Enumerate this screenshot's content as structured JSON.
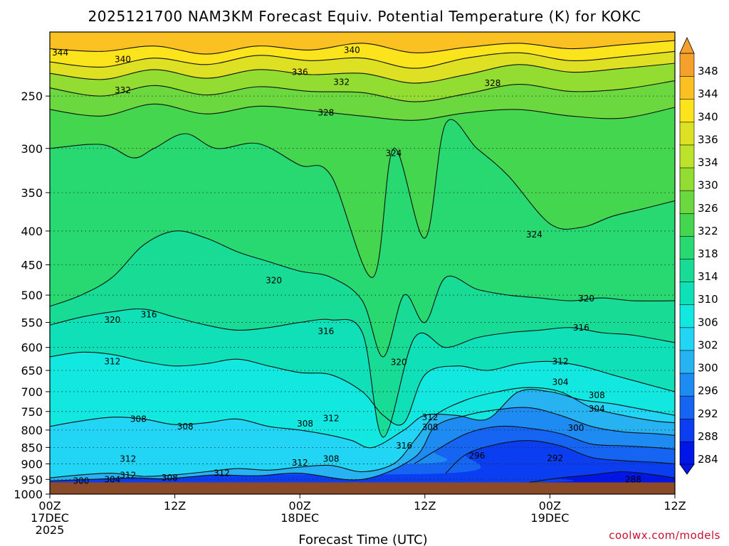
{
  "chart_data": {
    "type": "heatmap",
    "title": "2025121700 NAM3KM Forecast Equiv. Potential Temperature (K) for KOKC",
    "xlabel": "Forecast Time (UTC)",
    "ylabel": "",
    "x_ticks": [
      {
        "lines": [
          "00Z",
          "17DEC",
          "2025"
        ]
      },
      {
        "lines": [
          "12Z"
        ]
      },
      {
        "lines": [
          "00Z",
          "18DEC"
        ]
      },
      {
        "lines": [
          "12Z"
        ]
      },
      {
        "lines": [
          "00Z",
          "19DEC"
        ]
      },
      {
        "lines": [
          "12Z"
        ]
      }
    ],
    "x_range_hours": [
      0,
      60
    ],
    "y_range_hpa": [
      1000,
      200
    ],
    "y_scale": "log",
    "y_ticks": [
      250,
      300,
      350,
      400,
      450,
      500,
      550,
      600,
      650,
      700,
      750,
      800,
      850,
      900,
      950,
      1000
    ],
    "grid": true,
    "colorbar": {
      "levels": [
        284,
        288,
        292,
        296,
        300,
        302,
        306,
        310,
        314,
        318,
        322,
        326,
        330,
        334,
        336,
        340,
        344,
        348
      ],
      "colors": [
        "#0015e8",
        "#0a3ef0",
        "#1565f2",
        "#1e8bf2",
        "#27b3f2",
        "#22d5f5",
        "#12e8e0",
        "#10e0b8",
        "#18dc96",
        "#28d870",
        "#45d650",
        "#6ad83e",
        "#93dc32",
        "#bce22a",
        "#dee024",
        "#fce41c",
        "#fbc022",
        "#f4a02a"
      ],
      "position": "right"
    },
    "isotherms": [
      {
        "value": 344,
        "points": [
          [
            0,
            212
          ],
          [
            5,
            214
          ],
          [
            10,
            210
          ],
          [
            15,
            216
          ],
          [
            20,
            210
          ],
          [
            25,
            213
          ],
          [
            30,
            208
          ],
          [
            35,
            215
          ],
          [
            40,
            211
          ],
          [
            45,
            208
          ],
          [
            50,
            212
          ],
          [
            55,
            209
          ],
          [
            60,
            206
          ]
        ]
      },
      {
        "value": 340,
        "points": [
          [
            0,
            222
          ],
          [
            5,
            226
          ],
          [
            10,
            219
          ],
          [
            15,
            224
          ],
          [
            20,
            217
          ],
          [
            25,
            221
          ],
          [
            30,
            219
          ],
          [
            35,
            227
          ],
          [
            40,
            219
          ],
          [
            45,
            215
          ],
          [
            50,
            221
          ],
          [
            55,
            218
          ],
          [
            60,
            214
          ]
        ]
      },
      {
        "value": 336,
        "points": [
          [
            0,
            231
          ],
          [
            5,
            236
          ],
          [
            10,
            228
          ],
          [
            15,
            235
          ],
          [
            20,
            228
          ],
          [
            25,
            232
          ],
          [
            30,
            231
          ],
          [
            35,
            239
          ],
          [
            40,
            232
          ],
          [
            45,
            224
          ],
          [
            50,
            230
          ],
          [
            55,
            227
          ],
          [
            60,
            223
          ]
        ]
      },
      {
        "value": 332,
        "points": [
          [
            0,
            243
          ],
          [
            5,
            250
          ],
          [
            10,
            241
          ],
          [
            15,
            249
          ],
          [
            20,
            242
          ],
          [
            25,
            246
          ],
          [
            30,
            247
          ],
          [
            35,
            255
          ],
          [
            40,
            248
          ],
          [
            45,
            240
          ],
          [
            50,
            246
          ],
          [
            55,
            244
          ],
          [
            60,
            237
          ]
        ]
      },
      {
        "value": 328,
        "points": [
          [
            0,
            262
          ],
          [
            5,
            268
          ],
          [
            10,
            257
          ],
          [
            15,
            266
          ],
          [
            20,
            259
          ],
          [
            25,
            263
          ],
          [
            30,
            268
          ],
          [
            35,
            272
          ],
          [
            40,
            265
          ],
          [
            45,
            262
          ],
          [
            50,
            268
          ],
          [
            55,
            270
          ],
          [
            60,
            260
          ]
        ]
      },
      {
        "value": 324,
        "points": [
          [
            0,
            300
          ],
          [
            5,
            296
          ],
          [
            8,
            310
          ],
          [
            10,
            300
          ],
          [
            13,
            285
          ],
          [
            16,
            300
          ],
          [
            20,
            295
          ],
          [
            24,
            318
          ],
          [
            27,
            330
          ],
          [
            31,
            470
          ],
          [
            33,
            300
          ],
          [
            36,
            410
          ],
          [
            38,
            275
          ],
          [
            41,
            300
          ],
          [
            44,
            330
          ],
          [
            48,
            390
          ],
          [
            51,
            395
          ],
          [
            54,
            380
          ],
          [
            57,
            370
          ],
          [
            60,
            360
          ]
        ]
      },
      {
        "value": 320,
        "points": [
          [
            0,
            520
          ],
          [
            3,
            500
          ],
          [
            6,
            470
          ],
          [
            9,
            420
          ],
          [
            12,
            400
          ],
          [
            15,
            410
          ],
          [
            18,
            430
          ],
          [
            21,
            445
          ],
          [
            24,
            460
          ],
          [
            27,
            470
          ],
          [
            30,
            510
          ],
          [
            32,
            620
          ],
          [
            34,
            500
          ],
          [
            36,
            550
          ],
          [
            38,
            470
          ],
          [
            41,
            490
          ],
          [
            44,
            500
          ],
          [
            47,
            505
          ],
          [
            50,
            510
          ],
          [
            53,
            505
          ],
          [
            56,
            510
          ],
          [
            60,
            510
          ]
        ]
      },
      {
        "value": 316,
        "points": [
          [
            0,
            555
          ],
          [
            3,
            540
          ],
          [
            6,
            530
          ],
          [
            9,
            525
          ],
          [
            12,
            540
          ],
          [
            15,
            555
          ],
          [
            18,
            565
          ],
          [
            21,
            560
          ],
          [
            24,
            550
          ],
          [
            27,
            545
          ],
          [
            30,
            570
          ],
          [
            32,
            820
          ],
          [
            35,
            580
          ],
          [
            38,
            600
          ],
          [
            41,
            580
          ],
          [
            44,
            570
          ],
          [
            47,
            565
          ],
          [
            50,
            560
          ],
          [
            53,
            570
          ],
          [
            56,
            575
          ],
          [
            60,
            590
          ]
        ]
      },
      {
        "value": 312,
        "points": [
          [
            0,
            620
          ],
          [
            3,
            610
          ],
          [
            6,
            615
          ],
          [
            9,
            630
          ],
          [
            12,
            640
          ],
          [
            15,
            635
          ],
          [
            18,
            625
          ],
          [
            21,
            640
          ],
          [
            24,
            655
          ],
          [
            27,
            660
          ],
          [
            30,
            700
          ],
          [
            32,
            760
          ],
          [
            34,
            780
          ],
          [
            36,
            660
          ],
          [
            39,
            640
          ],
          [
            42,
            650
          ],
          [
            45,
            635
          ],
          [
            48,
            630
          ],
          [
            51,
            640
          ],
          [
            54,
            660
          ],
          [
            57,
            680
          ],
          [
            60,
            700
          ]
        ]
      },
      {
        "value": 308,
        "points": [
          [
            0,
            790
          ],
          [
            3,
            775
          ],
          [
            6,
            765
          ],
          [
            9,
            770
          ],
          [
            12,
            785
          ],
          [
            15,
            780
          ],
          [
            18,
            770
          ],
          [
            21,
            790
          ],
          [
            24,
            800
          ],
          [
            27,
            815
          ],
          [
            29,
            830
          ],
          [
            31,
            850
          ],
          [
            34,
            800
          ],
          [
            36,
            760
          ],
          [
            39,
            760
          ],
          [
            42,
            770
          ],
          [
            45,
            700
          ],
          [
            48,
            700
          ],
          [
            51,
            720
          ],
          [
            54,
            730
          ],
          [
            57,
            745
          ],
          [
            60,
            760
          ]
        ]
      },
      {
        "value": 304,
        "points": [
          [
            0,
            945
          ],
          [
            3,
            935
          ],
          [
            6,
            930
          ],
          [
            9,
            940
          ],
          [
            12,
            935
          ],
          [
            15,
            925
          ],
          [
            18,
            915
          ],
          [
            21,
            920
          ],
          [
            24,
            910
          ],
          [
            27,
            905
          ],
          [
            30,
            925
          ],
          [
            33,
            900
          ],
          [
            35,
            830
          ],
          [
            37,
            760
          ],
          [
            40,
            720
          ],
          [
            43,
            700
          ],
          [
            46,
            690
          ],
          [
            49,
            700
          ],
          [
            52,
            740
          ],
          [
            55,
            760
          ],
          [
            58,
            775
          ],
          [
            60,
            780
          ]
        ]
      },
      {
        "value": 300,
        "points": [
          [
            0,
            955
          ],
          [
            4,
            950
          ],
          [
            8,
            945
          ],
          [
            11,
            948
          ],
          [
            14,
            940
          ],
          [
            16,
            935
          ],
          [
            20,
            938
          ],
          [
            24,
            930
          ],
          [
            30,
            950
          ],
          [
            35,
            880
          ],
          [
            37,
            790
          ],
          [
            40,
            760
          ],
          [
            43,
            745
          ],
          [
            46,
            740
          ],
          [
            49,
            760
          ],
          [
            52,
            790
          ],
          [
            55,
            805
          ],
          [
            58,
            810
          ],
          [
            60,
            815
          ]
        ]
      },
      {
        "value": 296,
        "points": [
          [
            35,
            900
          ],
          [
            37,
            860
          ],
          [
            40,
            810
          ],
          [
            43,
            790
          ],
          [
            46,
            795
          ],
          [
            49,
            810
          ],
          [
            52,
            840
          ],
          [
            55,
            845
          ],
          [
            58,
            850
          ],
          [
            60,
            855
          ]
        ]
      },
      {
        "value": 292,
        "points": [
          [
            38,
            930
          ],
          [
            40,
            870
          ],
          [
            43,
            840
          ],
          [
            46,
            830
          ],
          [
            49,
            845
          ],
          [
            52,
            880
          ],
          [
            55,
            890
          ],
          [
            58,
            895
          ],
          [
            60,
            900
          ]
        ]
      },
      {
        "value": 288,
        "points": [
          [
            46,
            960
          ],
          [
            49,
            945
          ],
          [
            52,
            935
          ],
          [
            55,
            925
          ],
          [
            58,
            935
          ],
          [
            60,
            945
          ]
        ]
      }
    ],
    "contour_labels": [
      {
        "text": "344",
        "x": 1.0,
        "y": 215
      },
      {
        "text": "340",
        "x": 7.0,
        "y": 220
      },
      {
        "text": "340",
        "x": 29.0,
        "y": 213
      },
      {
        "text": "336",
        "x": 24.0,
        "y": 230
      },
      {
        "text": "332",
        "x": 7.0,
        "y": 245
      },
      {
        "text": "332",
        "x": 28.0,
        "y": 238
      },
      {
        "text": "328",
        "x": 26.5,
        "y": 265
      },
      {
        "text": "328",
        "x": 42.5,
        "y": 239
      },
      {
        "text": "324",
        "x": 33.0,
        "y": 305
      },
      {
        "text": "324",
        "x": 46.5,
        "y": 405
      },
      {
        "text": "320",
        "x": 21.5,
        "y": 475
      },
      {
        "text": "320",
        "x": 6.0,
        "y": 545
      },
      {
        "text": "320",
        "x": 33.5,
        "y": 632
      },
      {
        "text": "320",
        "x": 51.5,
        "y": 506
      },
      {
        "text": "316",
        "x": 9.5,
        "y": 535
      },
      {
        "text": "316",
        "x": 26.5,
        "y": 567
      },
      {
        "text": "316",
        "x": 51.0,
        "y": 560
      },
      {
        "text": "316",
        "x": 34.0,
        "y": 845
      },
      {
        "text": "312",
        "x": 6.0,
        "y": 630
      },
      {
        "text": "312",
        "x": 27.0,
        "y": 768
      },
      {
        "text": "312",
        "x": 7.5,
        "y": 885
      },
      {
        "text": "312",
        "x": 7.5,
        "y": 937
      },
      {
        "text": "312",
        "x": 24.0,
        "y": 897
      },
      {
        "text": "312",
        "x": 16.5,
        "y": 930
      },
      {
        "text": "312",
        "x": 36.5,
        "y": 765
      },
      {
        "text": "312",
        "x": 49.0,
        "y": 630
      },
      {
        "text": "308",
        "x": 8.5,
        "y": 770
      },
      {
        "text": "308",
        "x": 13.0,
        "y": 790
      },
      {
        "text": "308",
        "x": 24.5,
        "y": 783
      },
      {
        "text": "308",
        "x": 27.0,
        "y": 885
      },
      {
        "text": "308",
        "x": 36.5,
        "y": 792
      },
      {
        "text": "308",
        "x": 52.5,
        "y": 709
      },
      {
        "text": "308",
        "x": 11.5,
        "y": 945
      },
      {
        "text": "304",
        "x": 6.0,
        "y": 950
      },
      {
        "text": "304",
        "x": 49.0,
        "y": 677
      },
      {
        "text": "304",
        "x": 52.5,
        "y": 743
      },
      {
        "text": "300",
        "x": 3.0,
        "y": 955
      },
      {
        "text": "300",
        "x": 50.5,
        "y": 794
      },
      {
        "text": "296",
        "x": 41.0,
        "y": 875
      },
      {
        "text": "292",
        "x": 48.5,
        "y": 882
      },
      {
        "text": "288",
        "x": 56.0,
        "y": 950
      }
    ],
    "ground_below_hpa": 960
  },
  "credit": "coolwx.com/models"
}
